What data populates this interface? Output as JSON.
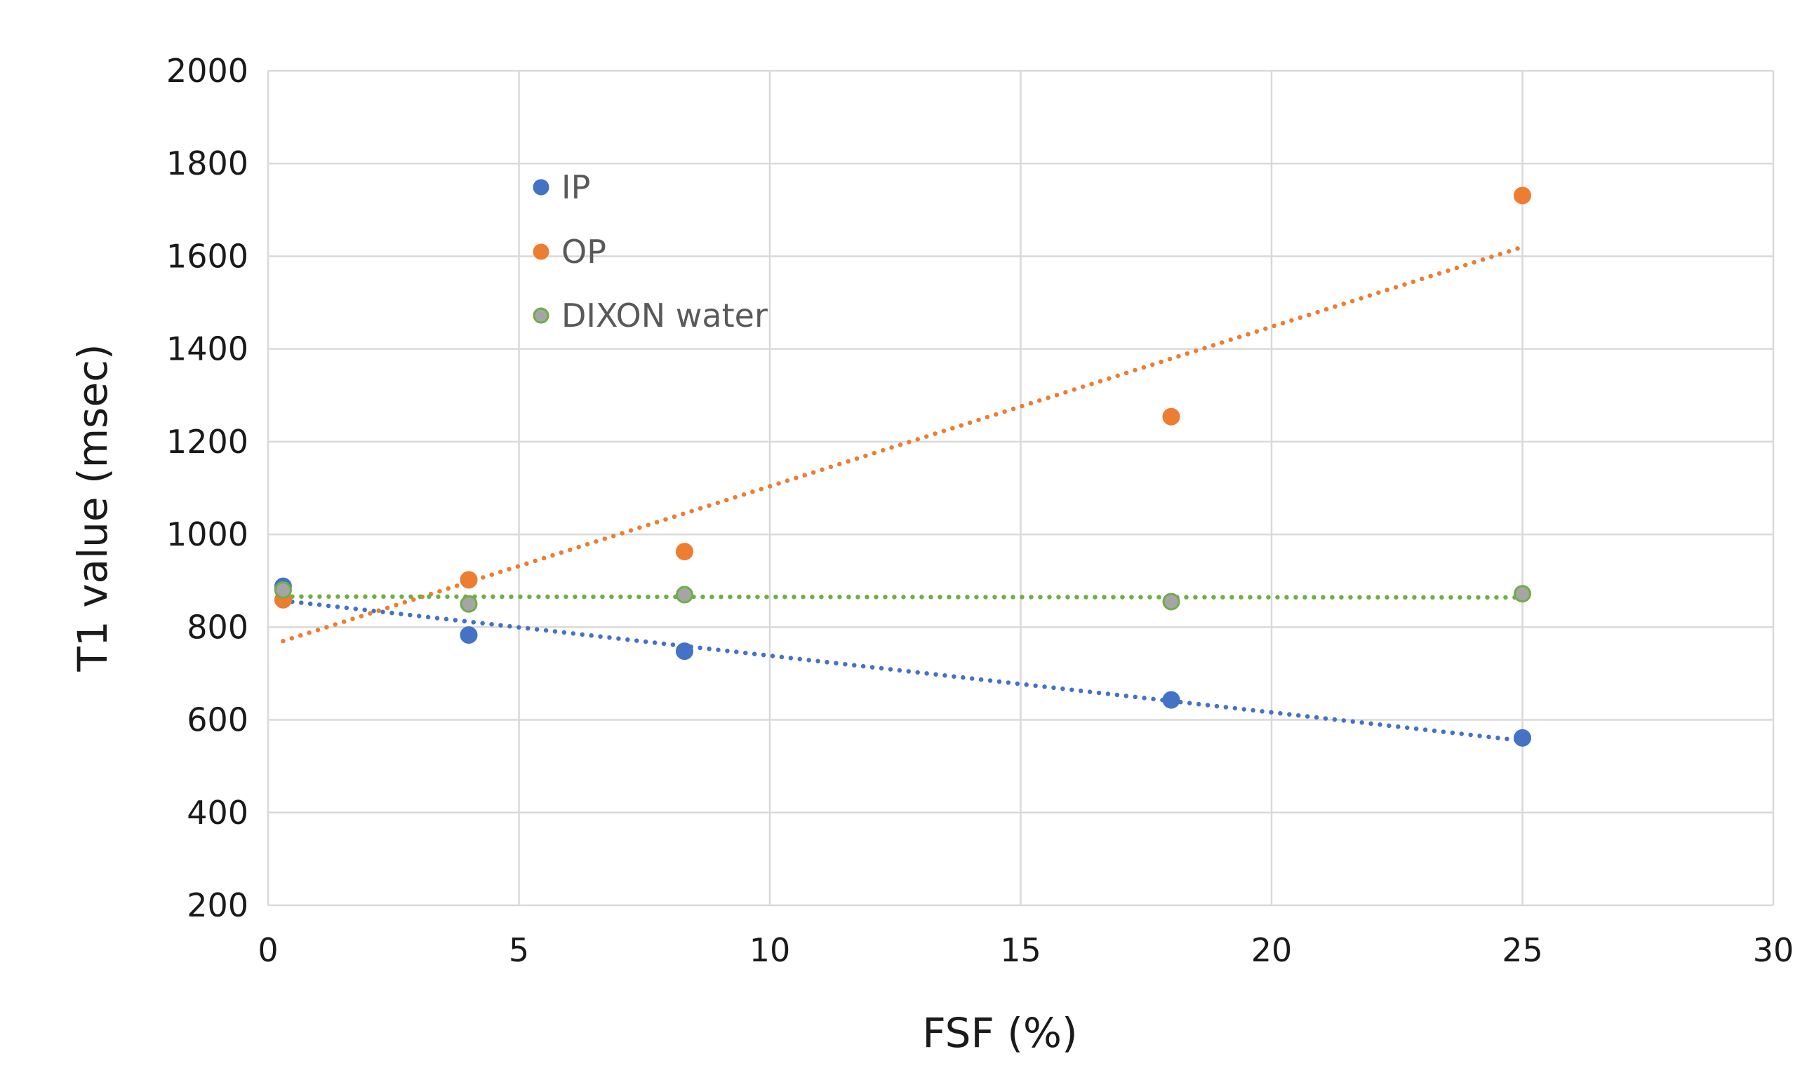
{
  "chart_data": {
    "type": "scatter",
    "title": "",
    "xlabel": "FSF (%)",
    "ylabel": "T1 value (msec)",
    "xlim": [
      0,
      30
    ],
    "ylim": [
      200,
      2000
    ],
    "xticks": [
      0,
      5,
      10,
      15,
      20,
      25,
      30
    ],
    "yticks": [
      200,
      400,
      600,
      800,
      1000,
      1200,
      1400,
      1600,
      1800,
      2000
    ],
    "grid": true,
    "legend_position": "upper-left-inside",
    "series": [
      {
        "name": "IP",
        "color": "#4472C4",
        "marker_fill": "#4472C4",
        "marker_stroke": "#4472C4",
        "x": [
          0.3,
          4,
          8.3,
          18,
          25
        ],
        "y": [
          888,
          783,
          748,
          643,
          561
        ],
        "trendline": {
          "type": "linear",
          "x": [
            0.3,
            25
          ],
          "y": [
            857,
            555
          ],
          "color": "#4472C4"
        }
      },
      {
        "name": "OP",
        "color": "#ED7D31",
        "marker_fill": "#ED7D31",
        "marker_stroke": "#ED7D31",
        "x": [
          0.3,
          4,
          8.3,
          18,
          25
        ],
        "y": [
          859,
          902,
          963,
          1254,
          1731
        ],
        "trendline": {
          "type": "linear",
          "x": [
            0.3,
            25
          ],
          "y": [
            770,
            1620
          ],
          "color": "#ED7D31"
        }
      },
      {
        "name": "DIXON water",
        "color": "#70AD47",
        "marker_fill": "#A5A5A5",
        "marker_stroke": "#70AD47",
        "x": [
          0.3,
          4,
          8.3,
          18,
          25
        ],
        "y": [
          880,
          850,
          870,
          855,
          872
        ],
        "trendline": {
          "type": "linear",
          "x": [
            0.3,
            25
          ],
          "y": [
            866,
            864
          ],
          "color": "#70AD47"
        }
      }
    ]
  },
  "colors": {
    "grid": "#D9D9D9",
    "text": "#1a1a1a",
    "legend_text": "#595959"
  }
}
